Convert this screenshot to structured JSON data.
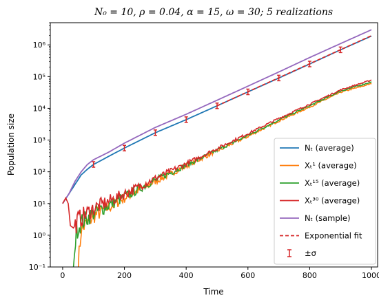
{
  "chart_data": {
    "type": "line",
    "title": "N₀ = 10, ρ = 0.04, α = 15, ω = 30; 5 realizations",
    "xlabel": "Time",
    "ylabel": "Population size",
    "xlim": [
      -40,
      1020
    ],
    "ylim": [
      0.1,
      5000000
    ],
    "yscale": "log",
    "x_ticks": [
      0,
      200,
      400,
      600,
      800,
      1000
    ],
    "x_tick_labels": [
      "0",
      "200",
      "400",
      "600",
      "800",
      "1000"
    ],
    "y_ticks": [
      0.1,
      1,
      10,
      100,
      1000,
      10000,
      100000,
      1000000
    ],
    "y_tick_labels": [
      "10⁻¹",
      "10⁰",
      "10¹",
      "10²",
      "10³",
      "10⁴",
      "10⁵",
      "10⁶"
    ],
    "grid": false,
    "legend_position": "lower-right",
    "series": [
      {
        "name": "Nₜ (average)",
        "color": "#1f77b4",
        "x": [
          0,
          20,
          40,
          60,
          80,
          100,
          150,
          200,
          300,
          400,
          500,
          600,
          700,
          800,
          900,
          1000
        ],
        "y": [
          10,
          20,
          40,
          80,
          120,
          170,
          310,
          560,
          1700,
          4400,
          12000,
          33000,
          90000,
          250000,
          700000,
          1900000
        ]
      },
      {
        "name": "Xₜ¹ (average)",
        "color": "#ff7f0e",
        "x": [
          50,
          60,
          100,
          200,
          300,
          400,
          500,
          600,
          700,
          800,
          900,
          1000
        ],
        "y": [
          0.1,
          1.5,
          4,
          15,
          50,
          150,
          450,
          1300,
          4000,
          11000,
          32000,
          60000
        ]
      },
      {
        "name": "Xₜ¹⁵ (average)",
        "color": "#2ca02c",
        "x": [
          35,
          45,
          60,
          100,
          200,
          300,
          400,
          500,
          600,
          700,
          800,
          900,
          1000
        ],
        "y": [
          0.1,
          1.5,
          2.5,
          5,
          16,
          55,
          160,
          480,
          1400,
          4300,
          12000,
          35000,
          68000
        ]
      },
      {
        "name": "Xₜ³⁰ (average)",
        "color": "#d62728",
        "x": [
          0,
          10,
          18,
          25,
          35,
          50,
          100,
          200,
          300,
          400,
          500,
          600,
          700,
          800,
          900,
          1000
        ],
        "y": [
          10,
          15,
          10,
          2,
          1.7,
          3,
          7,
          20,
          62,
          180,
          540,
          1600,
          4800,
          13500,
          38000,
          78000
        ]
      },
      {
        "name": "Nₜ (sample)",
        "color": "#9467bd",
        "x": [
          0,
          20,
          40,
          60,
          80,
          100,
          150,
          200,
          300,
          400,
          500,
          600,
          700,
          800,
          900,
          1000
        ],
        "y": [
          10,
          20,
          50,
          100,
          170,
          240,
          420,
          800,
          2500,
          6500,
          18000,
          50000,
          140000,
          400000,
          1100000,
          3000000
        ]
      },
      {
        "name": "Exponential fit",
        "color": "#d62728",
        "style": "dashed",
        "x": [
          500,
          1000
        ],
        "y": [
          12000,
          1950000
        ]
      }
    ],
    "error_bars": {
      "name": "±σ",
      "color": "#d62728",
      "x": [
        100,
        200,
        300,
        400,
        500,
        600,
        700,
        800,
        900
      ],
      "y": [
        170,
        560,
        1700,
        4400,
        12000,
        33000,
        90000,
        250000,
        700000
      ]
    }
  }
}
